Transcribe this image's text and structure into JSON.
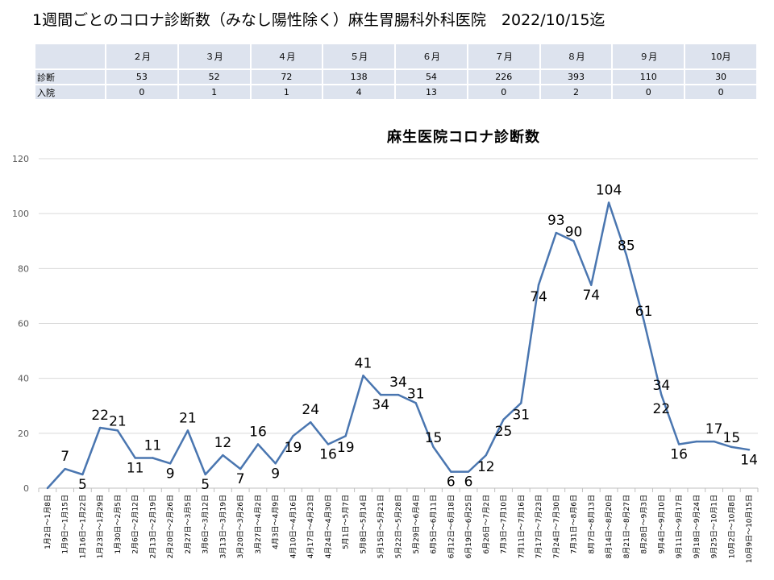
{
  "page": {
    "title": "1週間ごとのコロナ診断数（みなし陽性除く）麻生胃腸科外科医院　2022/10/15迄"
  },
  "summary_table": {
    "months": [
      "２月",
      "３月",
      "４月",
      "５月",
      "６月",
      "７月",
      "８月",
      "９月",
      "10月"
    ],
    "rows": [
      {
        "label": "診断",
        "values": [
          "53",
          "52",
          "72",
          "138",
          "54",
          "226",
          "393",
          "110",
          "30"
        ]
      },
      {
        "label": "入院",
        "values": [
          "0",
          "1",
          "1",
          "4",
          "13",
          "0",
          "2",
          "0",
          "0"
        ]
      }
    ]
  },
  "chart_data": {
    "type": "line",
    "title": "麻生医院コロナ診断数",
    "xlabel": "",
    "ylabel": "",
    "ylim": [
      0,
      120
    ],
    "yticks": [
      0,
      20,
      40,
      60,
      80,
      100,
      120
    ],
    "grid": true,
    "line_color": "#4a76b0",
    "categories": [
      "1月2日～1月8日",
      "1月9日～1月15日",
      "1月16日～1月22日",
      "1月23日～1月29日",
      "1月30日～2月5日",
      "2月6日～2月12日",
      "2月13日～2月19日",
      "2月20日～2月26日",
      "2月27日～3月5日",
      "3月6日～3月12日",
      "3月13日～3月19日",
      "3月20日～3月26日",
      "3月27日～4月2日",
      "4月3日～4月9日",
      "4月10日～4月16日",
      "4月17日～4月23日",
      "4月24日～4月30日",
      "5月1日～5月7日",
      "5月8日～5月14日",
      "5月15日～5月21日",
      "5月22日～5月28日",
      "5月29日～6月4日",
      "6月5日～6月11日",
      "6月12日～6月18日",
      "6月19日～6月25日",
      "6月26日～7月2日",
      "7月3日～7月10日",
      "7月11日～7月16日",
      "7月17日～7月23日",
      "7月24日～7月30日",
      "7月31日～8月6日",
      "8月7日～8月13日",
      "8月14日～8月20日",
      "8月21日～8月27日",
      "8月28日～9月3日",
      "9月4日～9月10日",
      "9月11日～9月17日",
      "9月18日～9月24日",
      "9月25日～10月1日",
      "10月2日～10月8日",
      "10月9日～10月15日"
    ],
    "series": [
      {
        "values": [
          0,
          7,
          5,
          22,
          21,
          11,
          11,
          9,
          21,
          5,
          12,
          7,
          16,
          9,
          19,
          24,
          16,
          19,
          41,
          34,
          34,
          31,
          15,
          6,
          6,
          12,
          25,
          31,
          74,
          93,
          90,
          74,
          104,
          85,
          61,
          34,
          16,
          17,
          17,
          15,
          14
        ],
        "labels": [
          "",
          "7",
          "5",
          "22",
          "21",
          "11",
          "11",
          "9",
          "21",
          "5",
          "12",
          "7",
          "16",
          "9",
          "19",
          "24",
          "16",
          "19",
          "41",
          "34",
          "34",
          "31",
          "15",
          "6",
          "6",
          "12",
          "25",
          "31",
          "74",
          "93",
          "90",
          "74",
          "104",
          "85",
          "61",
          "34\n22",
          "16",
          "",
          "17",
          "15",
          "14"
        ]
      }
    ]
  }
}
